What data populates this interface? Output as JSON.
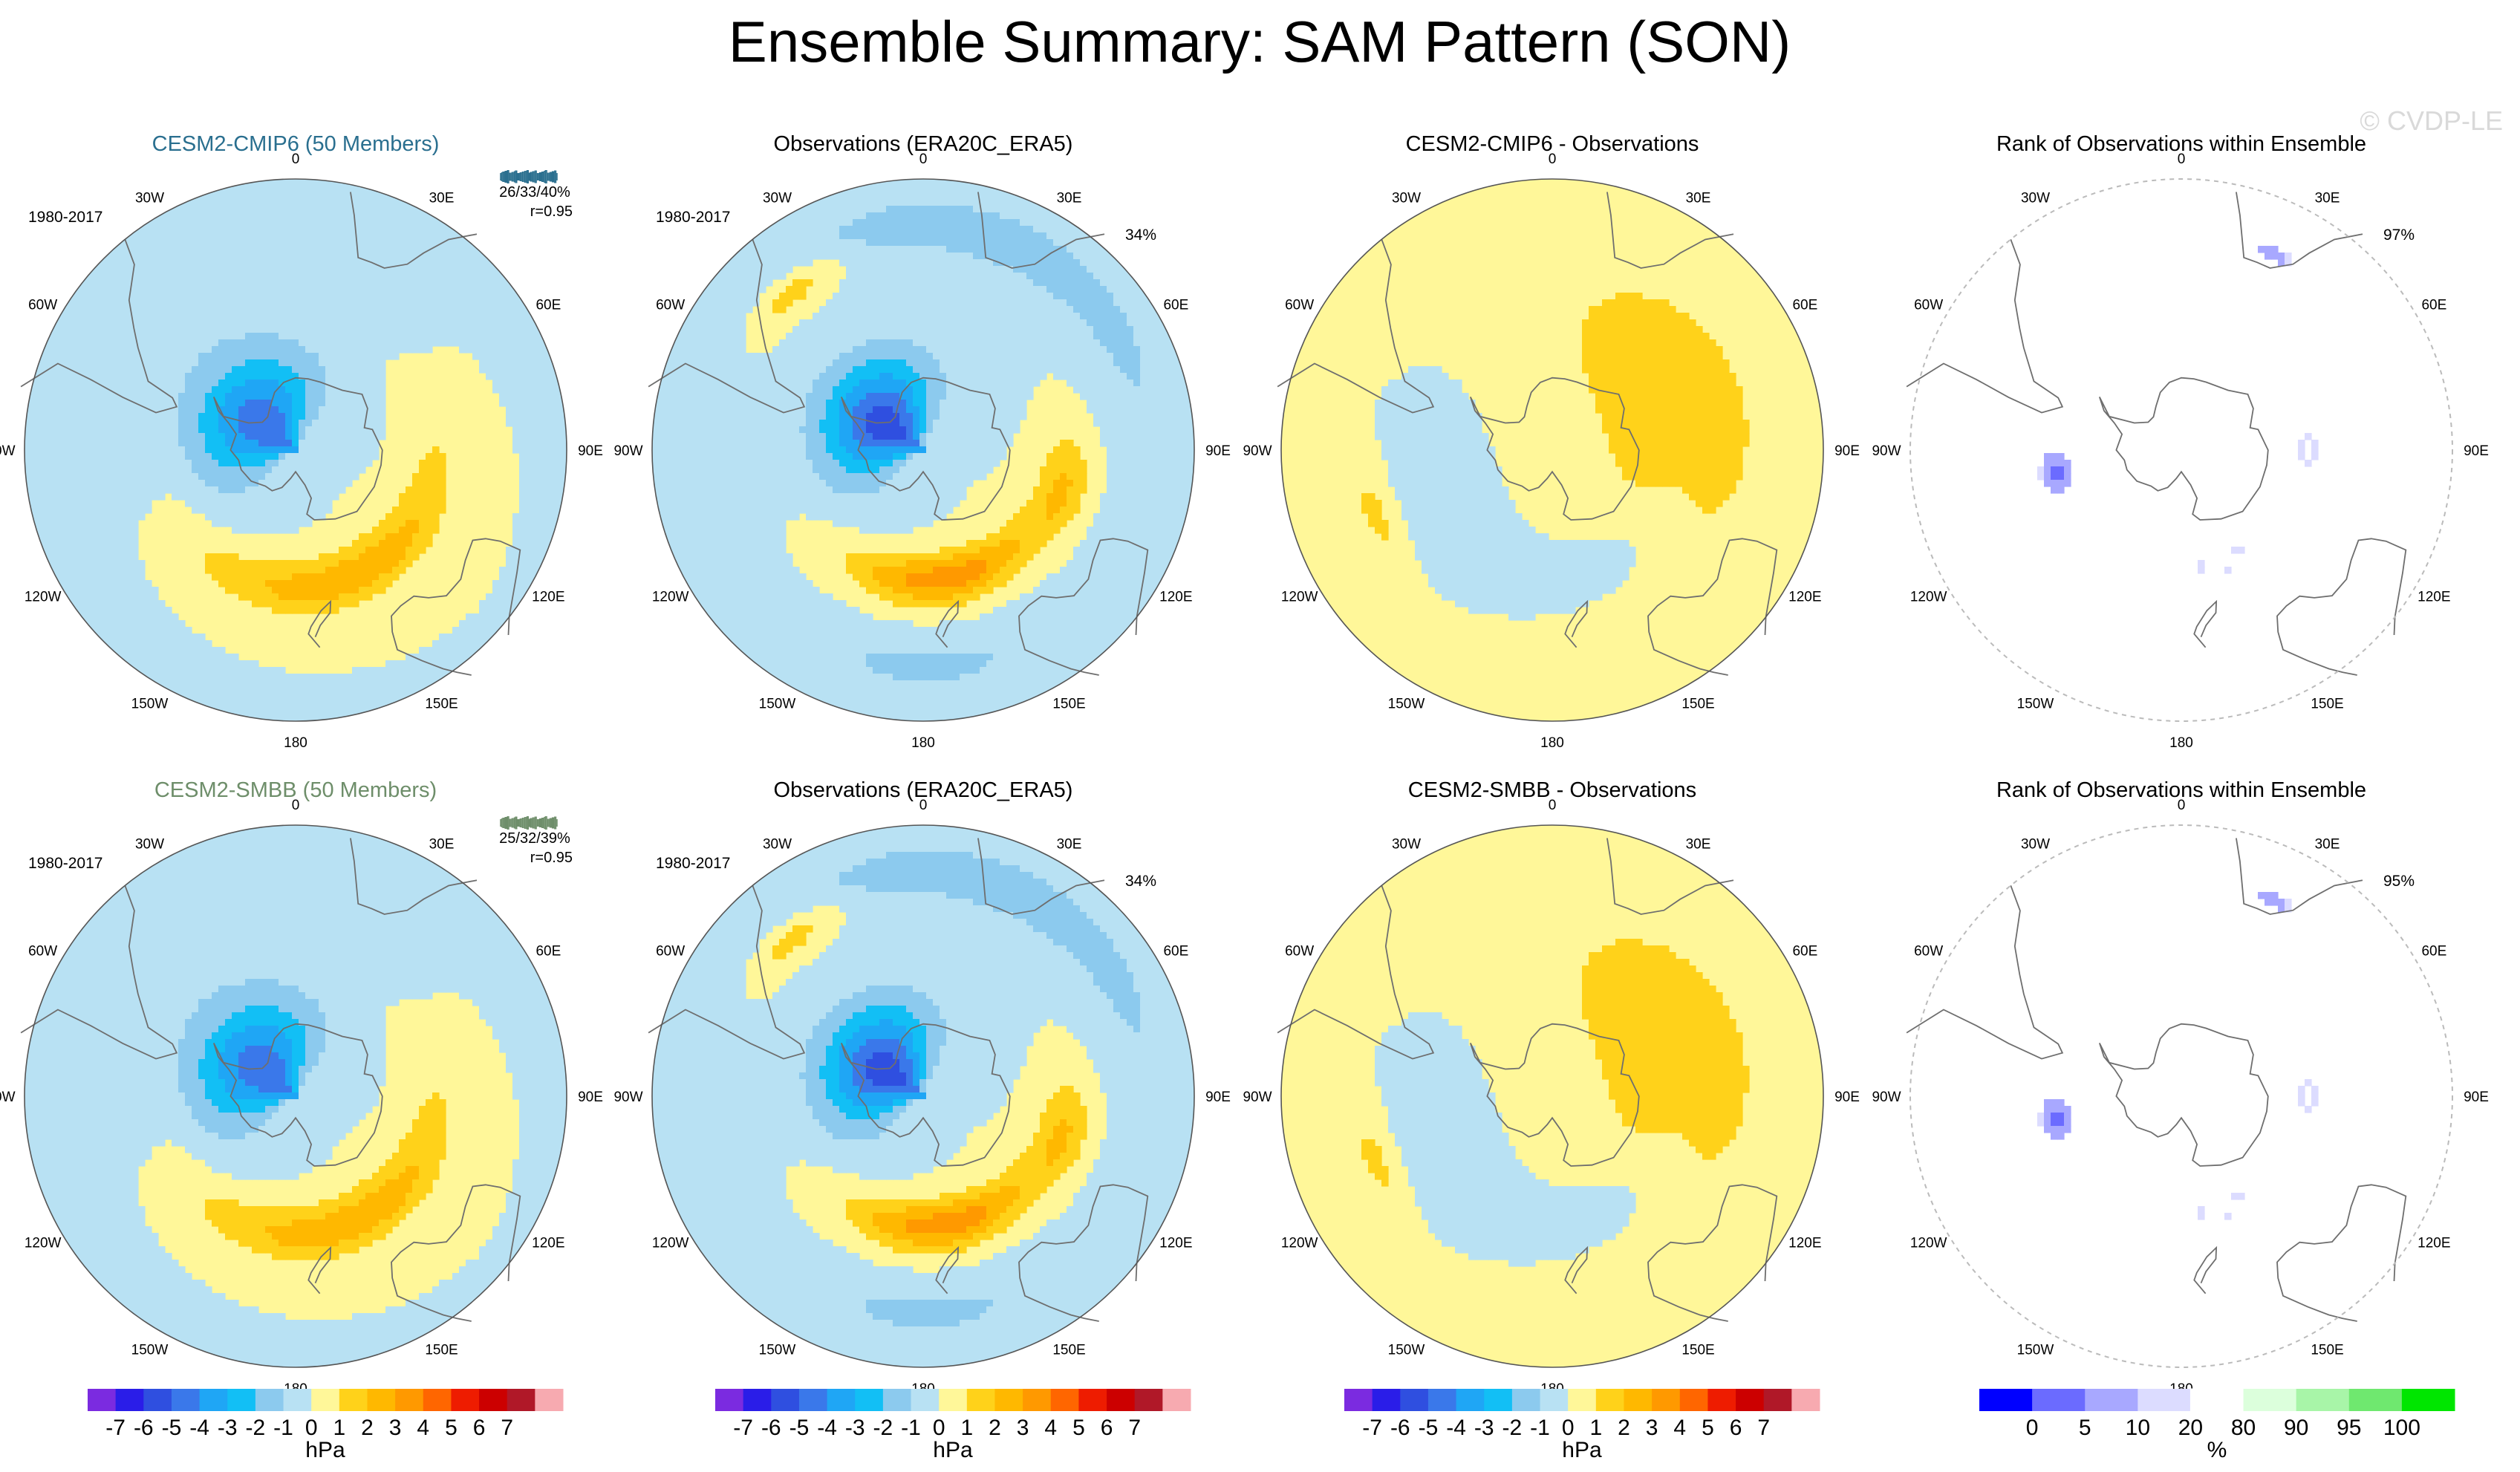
{
  "title": "Ensemble Summary: SAM Pattern (SON)",
  "watermark": "© CVDP-LE",
  "colors": {
    "neg": [
      "#7b2be0",
      "#2a1de8",
      "#2f4fe0",
      "#3a78ea",
      "#1fa6f5",
      "#12bff5",
      "#8ccaee",
      "#b8e1f3"
    ],
    "pos": [
      "#fff799",
      "#ffd21a",
      "#ffb800",
      "#ff9900",
      "#ff6600",
      "#ee1c00",
      "#cc0000",
      "#b01828",
      "#f7aab0"
    ],
    "rank": [
      "#0000ff",
      "#6b6bff",
      "#a8a8ff",
      "#dcdcff",
      "#ffffff",
      "#dcffdc",
      "#a8f5a8",
      "#6fe86f",
      "#00e600"
    ],
    "land_outline": "#6e6e6e",
    "title_cmip6": "#2a6f8f",
    "title_smbb": "#6e8e6a"
  },
  "lon_labels": [
    "0",
    "30E",
    "60E",
    "90E",
    "120E",
    "150E",
    "180",
    "150W",
    "120W",
    "90W",
    "60W",
    "30W"
  ],
  "chart_data": [
    {
      "type": "heatmap",
      "panel": "r0c0",
      "title": "CESM2-CMIP6 (50 Members)",
      "period": "1980-2017",
      "stats": "26/33/40%",
      "corr": "r=0.95",
      "field": "sam_model",
      "strength": 1.0
    },
    {
      "type": "heatmap",
      "panel": "r0c1",
      "title": "Observations (ERA20C_ERA5)",
      "period": "1980-2017",
      "pct": "34%",
      "field": "sam_obs"
    },
    {
      "type": "heatmap",
      "panel": "r0c2",
      "title": "CESM2-CMIP6 - Observations",
      "field": "sam_diff"
    },
    {
      "type": "heatmap",
      "panel": "r0c3",
      "title": "Rank of Observations within Ensemble",
      "pct": "97%",
      "field": "rank"
    },
    {
      "type": "heatmap",
      "panel": "r1c0",
      "title": "CESM2-SMBB (50 Members)",
      "period": "1980-2017",
      "stats": "25/32/39%",
      "corr": "r=0.95",
      "field": "sam_model",
      "strength": 1.0
    },
    {
      "type": "heatmap",
      "panel": "r1c1",
      "title": "Observations (ERA20C_ERA5)",
      "period": "1980-2017",
      "pct": "34%",
      "field": "sam_obs"
    },
    {
      "type": "heatmap",
      "panel": "r1c2",
      "title": "CESM2-SMBB - Observations",
      "field": "sam_diff"
    },
    {
      "type": "heatmap",
      "panel": "r1c3",
      "title": "Rank of Observations within Ensemble",
      "pct": "95%",
      "field": "rank"
    }
  ],
  "colorbars": [
    {
      "labels": [
        "-7",
        "-6",
        "-5",
        "-4",
        "-3",
        "-2",
        "-1",
        "0",
        "1",
        "2",
        "3",
        "4",
        "5",
        "6",
        "7"
      ],
      "unit": "hPa"
    },
    {
      "labels": [
        "-7",
        "-6",
        "-5",
        "-4",
        "-3",
        "-2",
        "-1",
        "0",
        "1",
        "2",
        "3",
        "4",
        "5",
        "6",
        "7"
      ],
      "unit": "hPa"
    },
    {
      "labels": [
        "-7",
        "-6",
        "-5",
        "-4",
        "-3",
        "-2",
        "-1",
        "0",
        "1",
        "2",
        "3",
        "4",
        "5",
        "6",
        "7"
      ],
      "unit": "hPa"
    },
    {
      "labels": [
        "0",
        "5",
        "10",
        "20",
        "80",
        "90",
        "95",
        "100"
      ],
      "unit": "%"
    }
  ]
}
